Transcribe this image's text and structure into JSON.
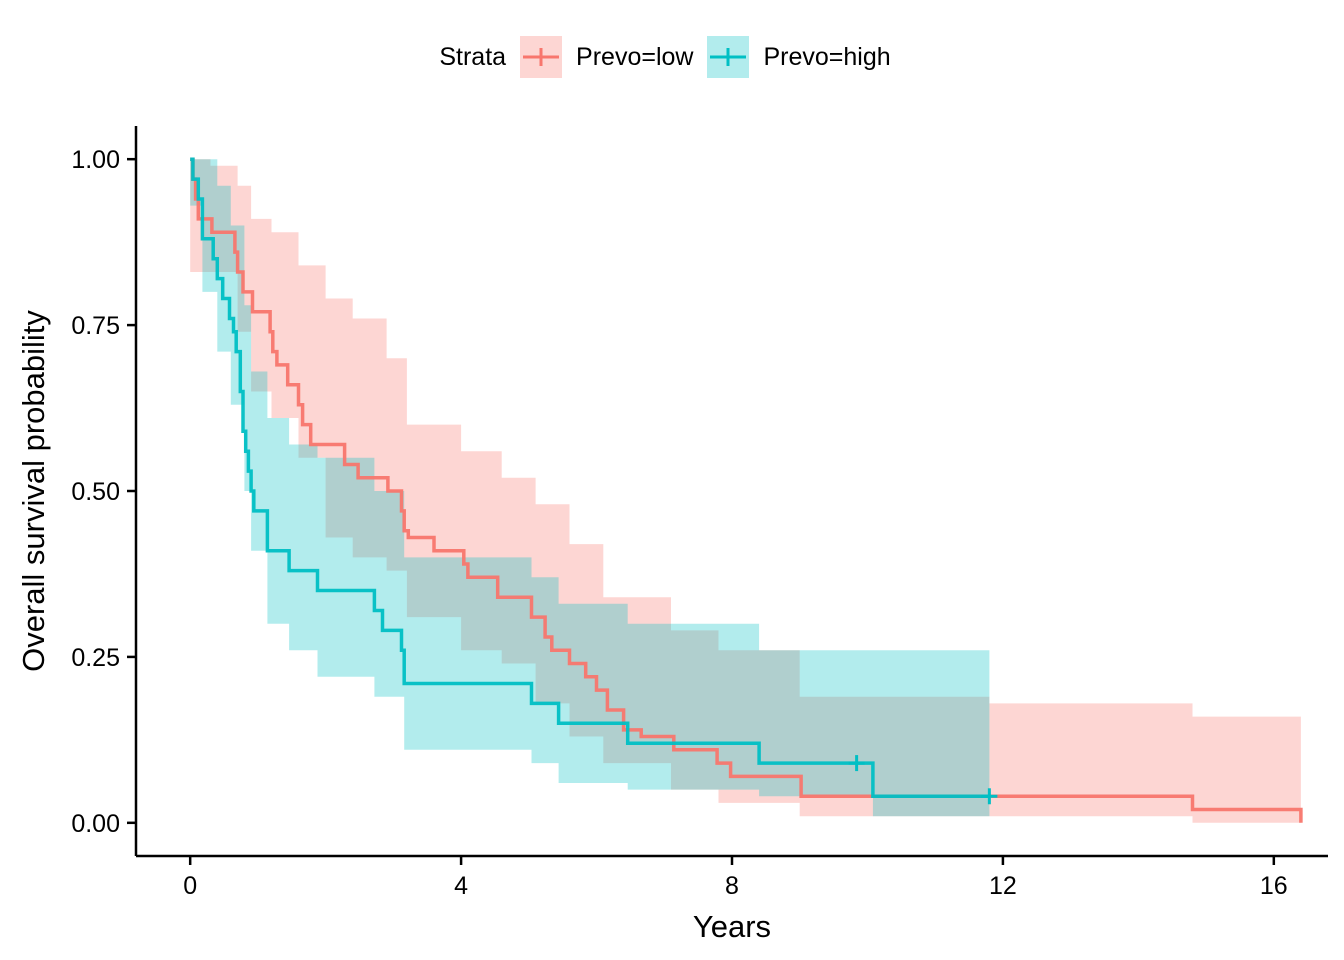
{
  "legend": {
    "title": "Strata",
    "items": [
      {
        "label": "Prevo=low",
        "color": "#F8766D"
      },
      {
        "label": "Prevo=high",
        "color": "#00BFC4"
      }
    ]
  },
  "chart_data": {
    "type": "line",
    "xlabel": "Years",
    "ylabel": "Overall survival probability",
    "xlim": [
      -0.8,
      16.8
    ],
    "ylim": [
      -0.05,
      1.05
    ],
    "xticks": [
      0,
      4,
      8,
      12,
      16
    ],
    "xtick_labels": [
      "0",
      "4",
      "8",
      "12",
      "16"
    ],
    "yticks": [
      0,
      0.25,
      0.5,
      0.75,
      1.0
    ],
    "ytick_labels": [
      "0.00",
      "0.25",
      "0.50",
      "0.75",
      "1.00"
    ],
    "grid": false,
    "legend_position": "top",
    "series": [
      {
        "name": "Prevo=low",
        "color": "#F8766D",
        "steps": [
          [
            0,
            1.0
          ],
          [
            0.04,
            0.97
          ],
          [
            0.08,
            0.94
          ],
          [
            0.12,
            0.91
          ],
          [
            0.32,
            0.89
          ],
          [
            0.66,
            0.86
          ],
          [
            0.7,
            0.83
          ],
          [
            0.78,
            0.8
          ],
          [
            0.92,
            0.77
          ],
          [
            1.18,
            0.74
          ],
          [
            1.22,
            0.71
          ],
          [
            1.28,
            0.69
          ],
          [
            1.44,
            0.66
          ],
          [
            1.6,
            0.63
          ],
          [
            1.66,
            0.6
          ],
          [
            1.78,
            0.57
          ],
          [
            1.92,
            0.57
          ],
          [
            2.28,
            0.54
          ],
          [
            2.48,
            0.52
          ],
          [
            2.8,
            0.52
          ],
          [
            2.92,
            0.5
          ],
          [
            3.12,
            0.47
          ],
          [
            3.16,
            0.44
          ],
          [
            3.22,
            0.43
          ],
          [
            3.6,
            0.41
          ],
          [
            4.04,
            0.39
          ],
          [
            4.1,
            0.37
          ],
          [
            4.54,
            0.34
          ],
          [
            5.04,
            0.31
          ],
          [
            5.24,
            0.28
          ],
          [
            5.34,
            0.26
          ],
          [
            5.6,
            0.24
          ],
          [
            5.84,
            0.22
          ],
          [
            6.0,
            0.2
          ],
          [
            6.16,
            0.17
          ],
          [
            6.4,
            0.14
          ],
          [
            6.66,
            0.13
          ],
          [
            7.14,
            0.11
          ],
          [
            7.78,
            0.09
          ],
          [
            7.98,
            0.07
          ],
          [
            9.02,
            0.04
          ],
          [
            14.8,
            0.02
          ],
          [
            16.4,
            0.0
          ]
        ],
        "censor": [],
        "band": [
          [
            0,
            0.83,
            1.0
          ],
          [
            0.3,
            0.83,
            0.99
          ],
          [
            0.7,
            0.74,
            0.96
          ],
          [
            0.9,
            0.65,
            0.91
          ],
          [
            1.2,
            0.61,
            0.89
          ],
          [
            1.6,
            0.55,
            0.84
          ],
          [
            2.0,
            0.43,
            0.79
          ],
          [
            2.4,
            0.4,
            0.76
          ],
          [
            2.9,
            0.38,
            0.7
          ],
          [
            3.2,
            0.31,
            0.6
          ],
          [
            4.0,
            0.26,
            0.56
          ],
          [
            4.6,
            0.24,
            0.52
          ],
          [
            5.1,
            0.18,
            0.48
          ],
          [
            5.6,
            0.13,
            0.42
          ],
          [
            6.1,
            0.09,
            0.34
          ],
          [
            7.1,
            0.05,
            0.29
          ],
          [
            7.8,
            0.03,
            0.26
          ],
          [
            9.0,
            0.01,
            0.19
          ],
          [
            11.8,
            0.01,
            0.18
          ],
          [
            14.8,
            0.0,
            0.16
          ],
          [
            16.4,
            0.0,
            0.16
          ]
        ]
      },
      {
        "name": "Prevo=high",
        "color": "#00BFC4",
        "steps": [
          [
            0,
            1.0
          ],
          [
            0.04,
            0.97
          ],
          [
            0.12,
            0.94
          ],
          [
            0.18,
            0.88
          ],
          [
            0.34,
            0.85
          ],
          [
            0.4,
            0.82
          ],
          [
            0.48,
            0.79
          ],
          [
            0.58,
            0.76
          ],
          [
            0.64,
            0.74
          ],
          [
            0.68,
            0.71
          ],
          [
            0.74,
            0.65
          ],
          [
            0.78,
            0.59
          ],
          [
            0.82,
            0.56
          ],
          [
            0.86,
            0.53
          ],
          [
            0.9,
            0.5
          ],
          [
            0.94,
            0.47
          ],
          [
            1.14,
            0.41
          ],
          [
            1.46,
            0.38
          ],
          [
            1.88,
            0.35
          ],
          [
            2.72,
            0.32
          ],
          [
            2.84,
            0.29
          ],
          [
            3.12,
            0.26
          ],
          [
            3.16,
            0.21
          ],
          [
            5.04,
            0.18
          ],
          [
            5.44,
            0.15
          ],
          [
            6.46,
            0.12
          ],
          [
            8.4,
            0.09
          ],
          [
            10.08,
            0.04
          ],
          [
            11.8,
            0.04
          ]
        ],
        "censor": [
          [
            9.84,
            0.09
          ],
          [
            11.8,
            0.04
          ]
        ],
        "band": [
          [
            0,
            0.93,
            1.0
          ],
          [
            0.18,
            0.8,
            1.0
          ],
          [
            0.4,
            0.71,
            0.96
          ],
          [
            0.6,
            0.63,
            0.9
          ],
          [
            0.8,
            0.5,
            0.78
          ],
          [
            0.9,
            0.41,
            0.68
          ],
          [
            1.14,
            0.3,
            0.61
          ],
          [
            1.46,
            0.26,
            0.57
          ],
          [
            1.88,
            0.22,
            0.55
          ],
          [
            2.72,
            0.19,
            0.5
          ],
          [
            3.16,
            0.11,
            0.4
          ],
          [
            5.04,
            0.09,
            0.37
          ],
          [
            5.44,
            0.06,
            0.33
          ],
          [
            6.46,
            0.05,
            0.3
          ],
          [
            8.4,
            0.04,
            0.26
          ],
          [
            10.08,
            0.01,
            0.26
          ],
          [
            11.8,
            0.01,
            0.26
          ]
        ]
      }
    ]
  }
}
